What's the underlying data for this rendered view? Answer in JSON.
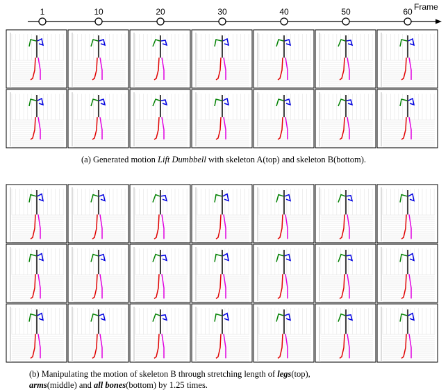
{
  "timeline": {
    "label": "Frame",
    "frames": [
      1,
      10,
      20,
      30,
      40,
      50,
      60
    ]
  },
  "caption_a": [
    "(a) Generated motion ",
    "Lift Dumbbell",
    " with skeleton A(top) and skeleton B(bottom)."
  ],
  "caption_b": [
    "(b) Manipulating the motion of skeleton B through stretching length of ",
    "legs",
    "(top),",
    "arms",
    "(middle) and ",
    "all bones",
    "(bottom) by 1.25 times."
  ]
}
